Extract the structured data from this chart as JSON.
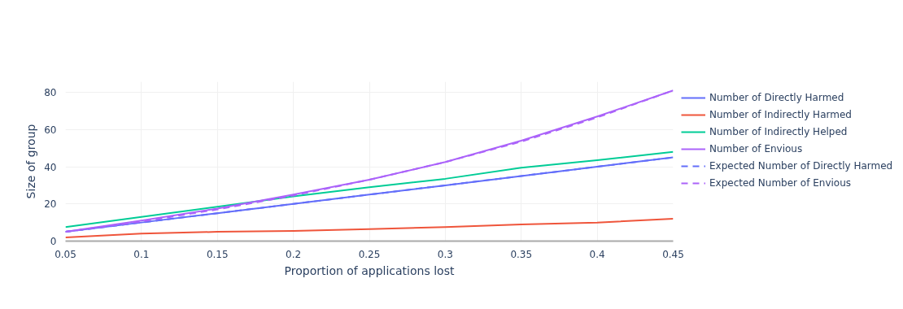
{
  "chart_data": {
    "type": "line",
    "xlabel": "Proportion of applications lost",
    "ylabel": "Size of group",
    "x": [
      0.05,
      0.1,
      0.15,
      0.2,
      0.25,
      0.3,
      0.35,
      0.4,
      0.45
    ],
    "series": [
      {
        "name": "Number of Directly Harmed",
        "color": "#636efa",
        "values": [
          5,
          10,
          15,
          20,
          25,
          30,
          35,
          40,
          45
        ]
      },
      {
        "name": "Number of Indirectly Harmed",
        "color": "#ef553b",
        "values": [
          2,
          4,
          5,
          5.5,
          6.5,
          7.5,
          9,
          10,
          12
        ]
      },
      {
        "name": "Number of Indirectly Helped",
        "color": "#00cc96",
        "values": [
          7.5,
          13,
          18.5,
          24,
          29,
          33.5,
          39.5,
          43.5,
          48
        ]
      },
      {
        "name": "Number of Envious",
        "color": "#ab63fa",
        "values": [
          5,
          11,
          17.5,
          25,
          33,
          42.5,
          54,
          67,
          81
        ]
      },
      {
        "name": "Expected Number of Directly Harmed",
        "color": "#636efa",
        "line_style": "dashed",
        "values": [
          5,
          10,
          15,
          20,
          25,
          30,
          35,
          40,
          45
        ]
      },
      {
        "name": "Expected Number of Envious",
        "color": "#ab63fa",
        "line_style": "dashed",
        "values": [
          5,
          10.5,
          17,
          24.5,
          33,
          42.5,
          53.5,
          66.5,
          81
        ]
      }
    ],
    "xlim": [
      0.05,
      0.45
    ],
    "xticks": [
      0.05,
      0.1,
      0.15,
      0.2,
      0.25,
      0.3,
      0.35,
      0.4,
      0.45
    ],
    "ylim": [
      0,
      85.7
    ],
    "yticks": [
      0,
      20,
      40,
      60,
      80
    ],
    "grid": true,
    "legend": "right",
    "line_style": "solid"
  }
}
